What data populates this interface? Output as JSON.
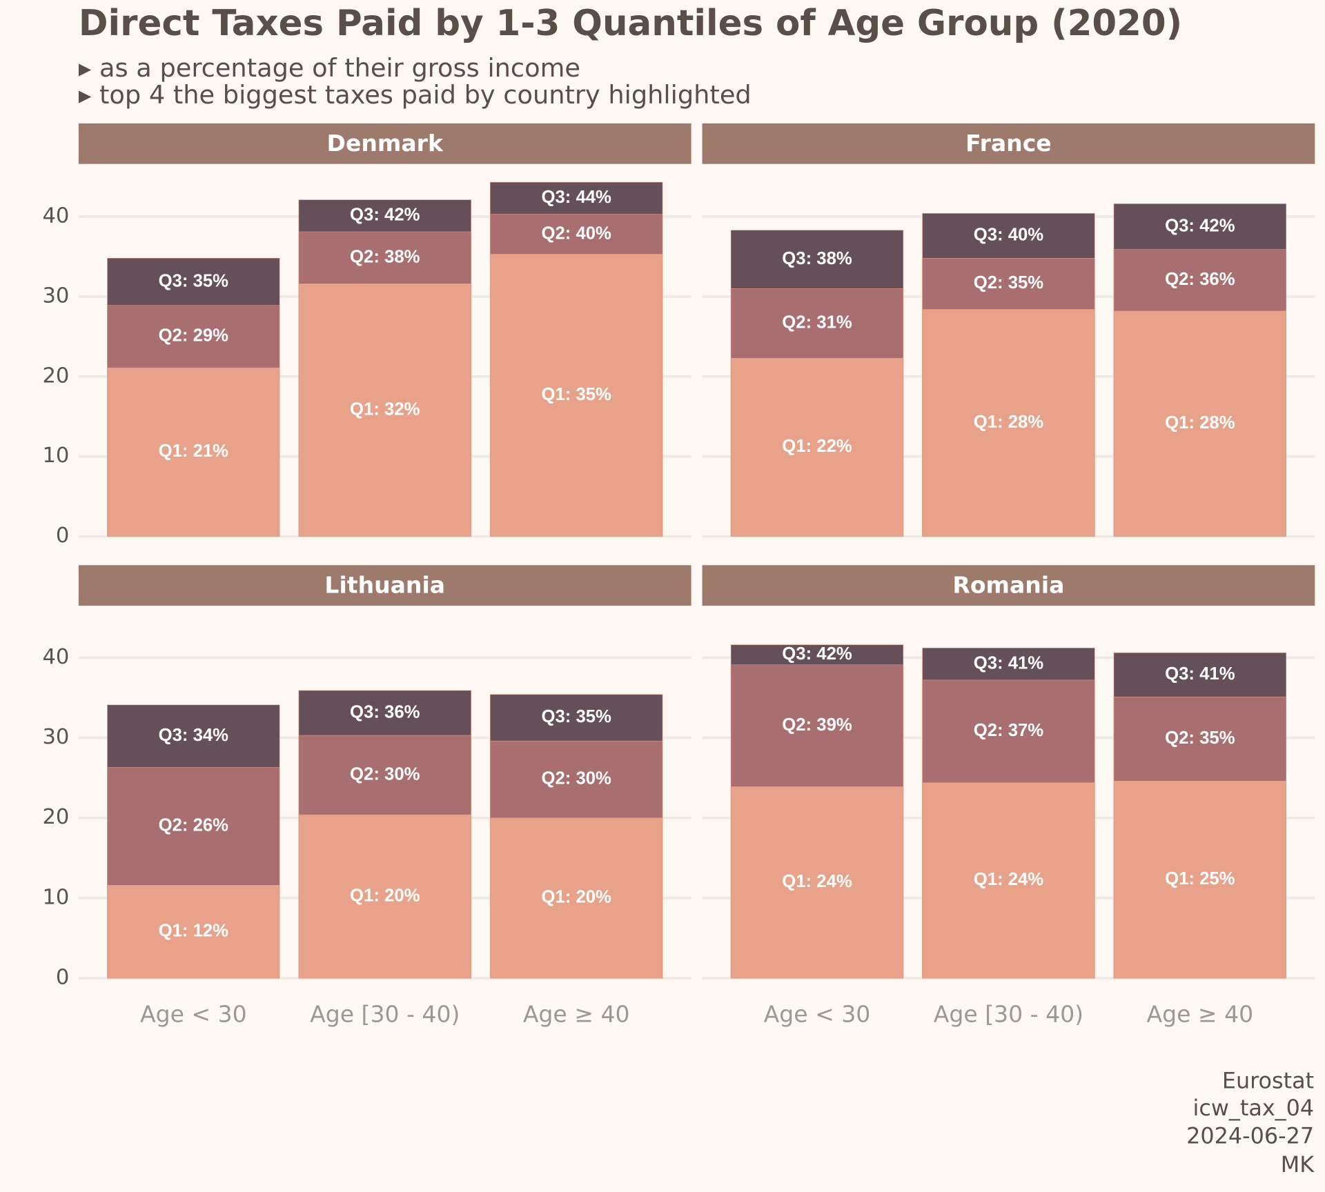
{
  "title": "Direct Taxes Paid by 1-3 Quantiles of Age Group (2020)",
  "subtitles": [
    "▸ as a percentage of their gross income",
    "▸ top 4 the biggest taxes paid by country highlighted"
  ],
  "caption": [
    "Eurostat",
    "icw_tax_04",
    "2024-06-27",
    "MK"
  ],
  "chart_data": [
    {
      "type": "bar",
      "title": "Denmark",
      "ylim": [
        0,
        45
      ],
      "yticks": [
        0,
        10,
        20,
        30,
        40
      ],
      "grid": true,
      "series": [
        {
          "color": "#e8a28a",
          "values": [
            21.1,
            31.6,
            35.3
          ],
          "value_labels": [
            "Q1: 21%",
            "Q1: 32%",
            "Q1: 35%"
          ]
        },
        {
          "color": "#a86e70",
          "values": [
            28.9,
            38.1,
            40.3
          ],
          "value_labels": [
            "Q2: 29%",
            "Q2: 38%",
            "Q2: 40%"
          ]
        },
        {
          "color": "#655059",
          "values": [
            34.8,
            42.1,
            44.3
          ],
          "value_labels": [
            "Q3: 35%",
            "Q3: 42%",
            "Q3: 44%"
          ]
        }
      ]
    },
    {
      "type": "bar",
      "title": "France",
      "ylim": [
        0,
        45
      ],
      "yticks": [
        0,
        10,
        20,
        30,
        40
      ],
      "grid": true,
      "series": [
        {
          "color": "#e8a28a",
          "values": [
            22.3,
            28.4,
            28.2
          ],
          "value_labels": [
            "Q1: 22%",
            "Q1: 28%",
            "Q1: 28%"
          ]
        },
        {
          "color": "#a86e70",
          "values": [
            31.0,
            34.8,
            35.9
          ],
          "value_labels": [
            "Q2: 31%",
            "Q2: 35%",
            "Q2: 36%"
          ]
        },
        {
          "color": "#655059",
          "values": [
            38.3,
            40.4,
            41.6
          ],
          "value_labels": [
            "Q3: 38%",
            "Q3: 40%",
            "Q3: 42%"
          ]
        }
      ]
    },
    {
      "type": "bar",
      "title": "Lithuania",
      "ylim": [
        0,
        45
      ],
      "yticks": [
        0,
        10,
        20,
        30,
        40
      ],
      "grid": true,
      "categories": [
        "Age < 30",
        "Age [30 - 40)",
        "Age ≥ 40"
      ],
      "series": [
        {
          "color": "#e8a28a",
          "values": [
            11.6,
            20.4,
            20.0
          ],
          "value_labels": [
            "Q1: 12%",
            "Q1: 20%",
            "Q1: 20%"
          ]
        },
        {
          "color": "#a86e70",
          "values": [
            26.3,
            30.3,
            29.6
          ],
          "value_labels": [
            "Q2: 26%",
            "Q2: 30%",
            "Q2: 30%"
          ]
        },
        {
          "color": "#655059",
          "values": [
            34.1,
            35.9,
            35.4
          ],
          "value_labels": [
            "Q3: 34%",
            "Q3: 36%",
            "Q3: 35%"
          ]
        }
      ]
    },
    {
      "type": "bar",
      "title": "Romania",
      "ylim": [
        0,
        45
      ],
      "yticks": [
        0,
        10,
        20,
        30,
        40
      ],
      "grid": true,
      "categories": [
        "Age < 30",
        "Age [30 - 40)",
        "Age ≥ 40"
      ],
      "series": [
        {
          "color": "#e8a28a",
          "values": [
            23.9,
            24.4,
            24.6
          ],
          "value_labels": [
            "Q1: 24%",
            "Q1: 24%",
            "Q1: 25%"
          ]
        },
        {
          "color": "#a86e70",
          "values": [
            39.1,
            37.2,
            35.1
          ],
          "value_labels": [
            "Q2: 39%",
            "Q2: 37%",
            "Q2: 35%"
          ]
        },
        {
          "color": "#655059",
          "values": [
            41.6,
            41.2,
            40.6
          ],
          "value_labels": [
            "Q3: 42%",
            "Q3: 41%",
            "Q3: 41%"
          ]
        }
      ]
    }
  ]
}
